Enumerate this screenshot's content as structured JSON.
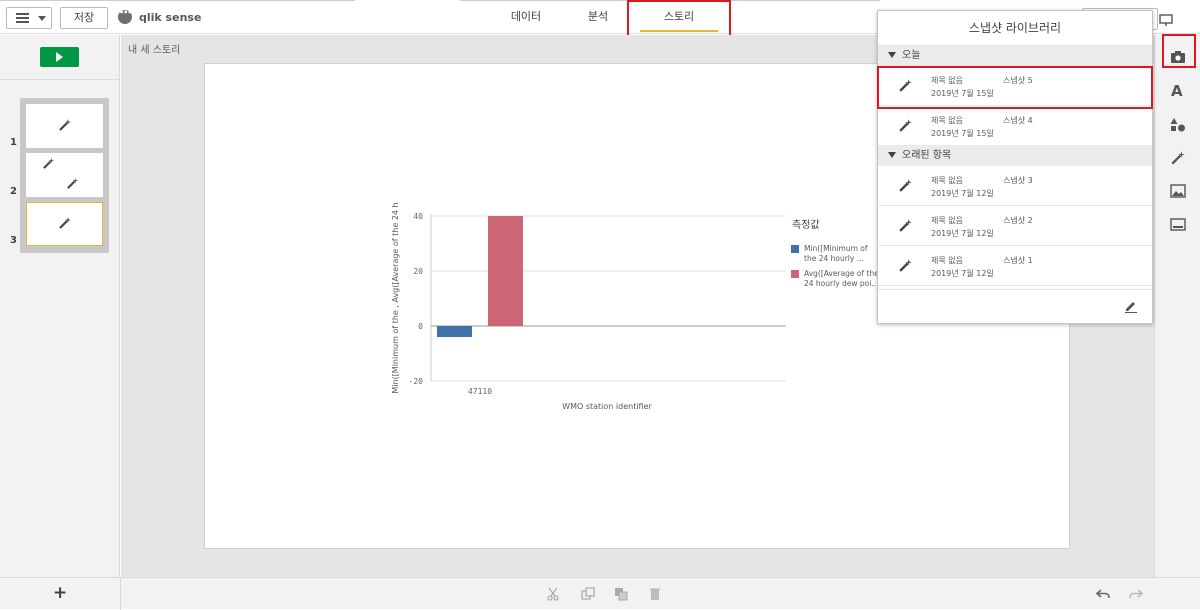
{
  "toolbar": {
    "save_label": "저장",
    "brand": "qlik sense"
  },
  "tabs": [
    {
      "label": "데이터"
    },
    {
      "label": "분석"
    },
    {
      "label": "스토리"
    }
  ],
  "sidebar": {
    "slide_numbers": [
      "1",
      "2",
      "3"
    ]
  },
  "story": {
    "title": "내 세 스토리"
  },
  "snapshot_library": {
    "title": "스냅샷 라이브러리",
    "groups": [
      {
        "label": "오늘",
        "items": [
          {
            "name": "제목 없음",
            "snapshot": "스냅샷 5",
            "date": "2019년 7월 15일"
          },
          {
            "name": "제목 없음",
            "snapshot": "스냅샷 4",
            "date": "2019년 7월 15일"
          }
        ]
      },
      {
        "label": "오래된 항목",
        "items": [
          {
            "name": "제목 없음",
            "snapshot": "스냅샷 3",
            "date": "2019년 7월 12일"
          },
          {
            "name": "제목 없음",
            "snapshot": "스냅샷 2",
            "date": "2019년 7월 12일"
          },
          {
            "name": "제목 없음",
            "snapshot": "스냅샷 1",
            "date": "2019년 7월 12일"
          }
        ]
      }
    ]
  },
  "bottom": {
    "add_label": "+"
  },
  "chart_data": {
    "type": "bar",
    "categories": [
      "47110"
    ],
    "series": [
      {
        "name": "Min([Minimum of the 24 hourly ...",
        "values": [
          -4
        ],
        "color": "#3f72a6"
      },
      {
        "name": "Avg([Average of the 24 hourly dew poi...",
        "values": [
          40
        ],
        "color": "#cc6677"
      }
    ],
    "legend_title": "측정값",
    "legend_lines": [
      [
        "Min([Minimum of",
        "the 24 hourly ..."
      ],
      [
        "Avg([Average of the",
        "24 hourly dew poi..."
      ]
    ],
    "xlabel": "WMO station identifier",
    "ylabel": "Min([Minimum of the , Avg([Average of the 24 h",
    "ylim": [
      -20,
      40
    ],
    "yticks": [
      -20,
      0,
      20,
      40
    ],
    "grid": true,
    "legend_position": "right"
  }
}
